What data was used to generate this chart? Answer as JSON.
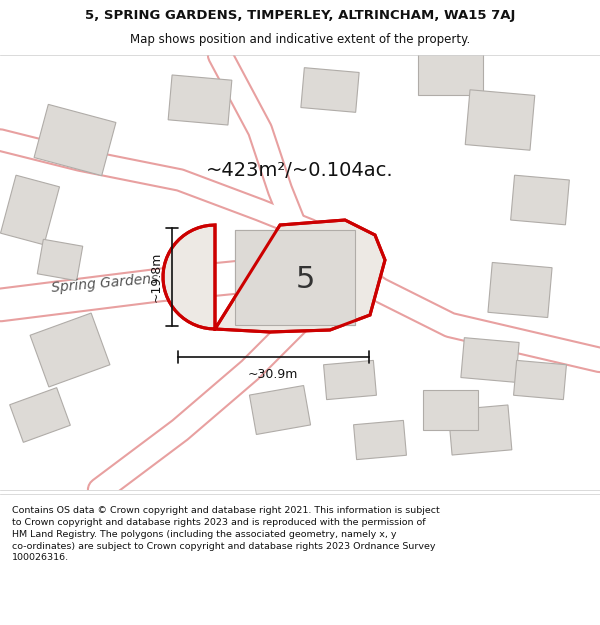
{
  "title_line1": "5, SPRING GARDENS, TIMPERLEY, ALTRINCHAM, WA15 7AJ",
  "title_line2": "Map shows position and indicative extent of the property.",
  "area_text": "~423m²/~0.104ac.",
  "label_number": "5",
  "dim_width": "~30.9m",
  "dim_height": "~19.8m",
  "street_label": "Spring Gardens",
  "footer_wrapped": "Contains OS data © Crown copyright and database right 2021. This information is subject\nto Crown copyright and database rights 2023 and is reproduced with the permission of\nHM Land Registry. The polygons (including the associated geometry, namely x, y\nco-ordinates) are subject to Crown copyright and database rights 2023 Ordnance Survey\n100026316.",
  "bg_color": "#f0eeec",
  "map_bg": "#f5f3f0",
  "road_color": "#ffffff",
  "road_outline": "#e8a0a0",
  "building_fill": "#dddad6",
  "building_outline": "#b0aca8",
  "plot_fill": "#ede9e4",
  "plot_outline": "#cc0000",
  "title_bg": "#ffffff",
  "footer_bg": "#ffffff"
}
